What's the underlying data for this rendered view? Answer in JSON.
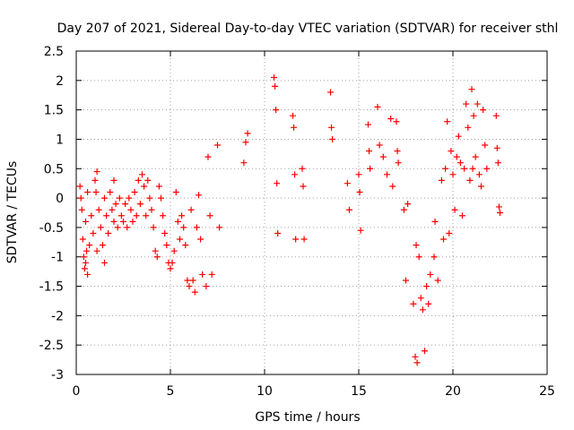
{
  "chart_data": {
    "type": "scatter",
    "title": "Day 207 of 2021, Sidereal Day-to-day VTEC variation (SDTVAR) for receiver sthl",
    "xlabel": "GPS time / hours",
    "ylabel": "SDTVAR / TECUs",
    "xlim": [
      0,
      25
    ],
    "ylim": [
      -3,
      2.5
    ],
    "xticks": [
      0,
      5,
      10,
      15,
      20,
      25
    ],
    "xtick_labels": [
      "0",
      "5",
      "10",
      "15",
      "20",
      "25"
    ],
    "yticks": [
      -3,
      -2.5,
      -2,
      -1.5,
      -1,
      -0.5,
      0,
      0.5,
      1,
      1.5,
      2,
      2.5
    ],
    "ytick_labels": [
      "-3",
      "-2.5",
      "-2",
      "-1.5",
      "-1",
      "-0.5",
      "0",
      "0.5",
      "1",
      "1.5",
      "2",
      "2.5"
    ],
    "grid": true,
    "marker": "+",
    "marker_color": "#ff0000",
    "series": [
      {
        "name": "SDTVAR",
        "points": [
          [
            0.2,
            0.2
          ],
          [
            0.25,
            0.0
          ],
          [
            0.3,
            -0.2
          ],
          [
            0.35,
            -0.7
          ],
          [
            0.4,
            -1.0
          ],
          [
            0.45,
            -1.2
          ],
          [
            0.5,
            -1.1
          ],
          [
            0.5,
            -0.4
          ],
          [
            0.55,
            -0.9
          ],
          [
            0.6,
            0.1
          ],
          [
            0.6,
            -1.3
          ],
          [
            0.7,
            -0.8
          ],
          [
            0.8,
            -0.3
          ],
          [
            0.9,
            -0.6
          ],
          [
            1.0,
            0.3
          ],
          [
            1.05,
            0.1
          ],
          [
            1.1,
            -0.9
          ],
          [
            1.1,
            0.45
          ],
          [
            1.2,
            -0.2
          ],
          [
            1.3,
            -0.5
          ],
          [
            1.4,
            -0.8
          ],
          [
            1.5,
            -1.1
          ],
          [
            1.5,
            0.0
          ],
          [
            1.6,
            -0.3
          ],
          [
            1.7,
            -0.6
          ],
          [
            1.8,
            0.1
          ],
          [
            1.9,
            -0.2
          ],
          [
            2.0,
            0.3
          ],
          [
            2.0,
            -0.4
          ],
          [
            2.1,
            -0.1
          ],
          [
            2.2,
            -0.5
          ],
          [
            2.3,
            0.0
          ],
          [
            2.4,
            -0.3
          ],
          [
            2.5,
            -0.4
          ],
          [
            2.6,
            -0.1
          ],
          [
            2.7,
            -0.5
          ],
          [
            2.8,
            0.0
          ],
          [
            2.9,
            -0.2
          ],
          [
            3.0,
            -0.4
          ],
          [
            3.1,
            0.1
          ],
          [
            3.2,
            -0.3
          ],
          [
            3.3,
            0.3
          ],
          [
            3.4,
            -0.1
          ],
          [
            3.5,
            0.4
          ],
          [
            3.6,
            0.2
          ],
          [
            3.7,
            -0.3
          ],
          [
            3.8,
            0.3
          ],
          [
            3.9,
            0.0
          ],
          [
            4.0,
            -0.2
          ],
          [
            4.1,
            -0.5
          ],
          [
            4.2,
            -0.9
          ],
          [
            4.3,
            -1.0
          ],
          [
            4.4,
            0.2
          ],
          [
            4.5,
            0.0
          ],
          [
            4.6,
            -0.3
          ],
          [
            4.7,
            -0.6
          ],
          [
            4.8,
            -0.8
          ],
          [
            4.9,
            -1.1
          ],
          [
            5.0,
            -1.2
          ],
          [
            5.1,
            -1.1
          ],
          [
            5.2,
            -0.9
          ],
          [
            5.3,
            0.1
          ],
          [
            5.4,
            -0.4
          ],
          [
            5.5,
            -0.7
          ],
          [
            5.6,
            -0.3
          ],
          [
            5.7,
            -0.5
          ],
          [
            5.8,
            -0.8
          ],
          [
            5.9,
            -1.4
          ],
          [
            6.0,
            -1.5
          ],
          [
            6.1,
            -0.2
          ],
          [
            6.2,
            -1.4
          ],
          [
            6.3,
            -1.6
          ],
          [
            6.4,
            -0.5
          ],
          [
            6.5,
            0.05
          ],
          [
            6.6,
            -0.7
          ],
          [
            6.7,
            -1.3
          ],
          [
            6.9,
            -1.5
          ],
          [
            7.0,
            0.7
          ],
          [
            7.1,
            -0.3
          ],
          [
            7.2,
            -1.3
          ],
          [
            7.5,
            0.9
          ],
          [
            7.6,
            -0.5
          ],
          [
            8.9,
            0.6
          ],
          [
            9.0,
            0.95
          ],
          [
            9.1,
            1.1
          ],
          [
            10.5,
            2.05
          ],
          [
            10.55,
            1.9
          ],
          [
            10.6,
            1.5
          ],
          [
            10.65,
            0.25
          ],
          [
            10.7,
            -0.6
          ],
          [
            11.5,
            1.4
          ],
          [
            11.55,
            1.2
          ],
          [
            11.6,
            0.4
          ],
          [
            11.65,
            -0.7
          ],
          [
            12.0,
            0.5
          ],
          [
            12.05,
            0.2
          ],
          [
            12.1,
            -0.7
          ],
          [
            13.5,
            1.8
          ],
          [
            13.55,
            1.2
          ],
          [
            13.6,
            1.0
          ],
          [
            14.4,
            0.25
          ],
          [
            14.5,
            -0.2
          ],
          [
            15.0,
            0.4
          ],
          [
            15.05,
            0.1
          ],
          [
            15.1,
            -0.55
          ],
          [
            15.5,
            1.25
          ],
          [
            15.55,
            0.8
          ],
          [
            15.6,
            0.5
          ],
          [
            16.0,
            1.55
          ],
          [
            16.1,
            0.9
          ],
          [
            16.3,
            0.7
          ],
          [
            16.5,
            0.4
          ],
          [
            16.7,
            1.35
          ],
          [
            16.8,
            0.2
          ],
          [
            17.0,
            1.3
          ],
          [
            17.05,
            0.8
          ],
          [
            17.1,
            0.6
          ],
          [
            17.4,
            -0.2
          ],
          [
            17.5,
            -1.4
          ],
          [
            17.6,
            -0.1
          ],
          [
            17.9,
            -1.8
          ],
          [
            18.0,
            -2.7
          ],
          [
            18.05,
            -0.8
          ],
          [
            18.1,
            -2.8
          ],
          [
            18.2,
            -1.0
          ],
          [
            18.3,
            -1.7
          ],
          [
            18.4,
            -1.9
          ],
          [
            18.5,
            -2.6
          ],
          [
            18.6,
            -1.5
          ],
          [
            18.7,
            -1.8
          ],
          [
            18.8,
            -1.3
          ],
          [
            19.0,
            -1.0
          ],
          [
            19.05,
            -0.4
          ],
          [
            19.2,
            -1.4
          ],
          [
            19.4,
            0.3
          ],
          [
            19.5,
            -0.7
          ],
          [
            19.6,
            0.5
          ],
          [
            19.7,
            1.3
          ],
          [
            19.8,
            -0.6
          ],
          [
            19.9,
            0.8
          ],
          [
            20.0,
            0.4
          ],
          [
            20.1,
            -0.2
          ],
          [
            20.2,
            0.7
          ],
          [
            20.3,
            1.05
          ],
          [
            20.4,
            0.6
          ],
          [
            20.5,
            -0.3
          ],
          [
            20.6,
            0.5
          ],
          [
            20.7,
            1.6
          ],
          [
            20.8,
            1.2
          ],
          [
            20.9,
            0.3
          ],
          [
            21.0,
            1.85
          ],
          [
            21.05,
            0.5
          ],
          [
            21.1,
            1.4
          ],
          [
            21.2,
            0.7
          ],
          [
            21.3,
            1.6
          ],
          [
            21.4,
            0.4
          ],
          [
            21.5,
            0.2
          ],
          [
            21.6,
            1.5
          ],
          [
            21.7,
            0.9
          ],
          [
            21.8,
            0.5
          ],
          [
            22.3,
            1.4
          ],
          [
            22.35,
            0.85
          ],
          [
            22.4,
            0.6
          ],
          [
            22.45,
            -0.15
          ],
          [
            22.5,
            -0.25
          ]
        ]
      }
    ]
  }
}
